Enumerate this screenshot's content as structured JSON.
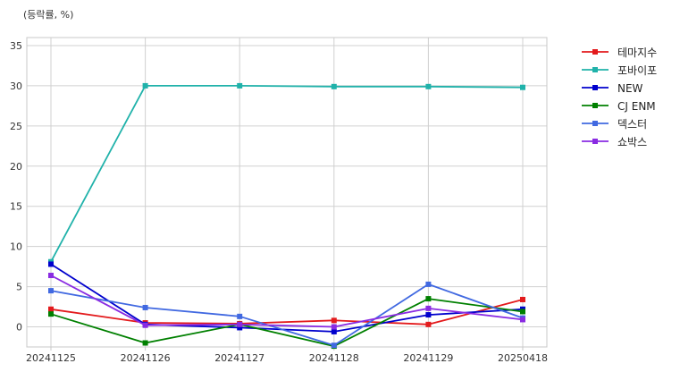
{
  "chart_data": {
    "type": "line",
    "unit_label": "(등락률, %)",
    "categories": [
      "20241125",
      "20241126",
      "20241127",
      "20241128",
      "20241129",
      "20250418"
    ],
    "ylim": [
      -2.5,
      36
    ],
    "yticks": [
      0,
      5,
      10,
      15,
      20,
      25,
      30,
      35
    ],
    "grid": true,
    "legend_position": "right-top-outside",
    "series": [
      {
        "name": "테마지수",
        "color": "#e31a1c",
        "values": [
          2.2,
          0.5,
          0.4,
          0.8,
          0.3,
          3.4
        ]
      },
      {
        "name": "포바이포",
        "color": "#20b2aa",
        "values": [
          8.1,
          30.0,
          30.0,
          29.9,
          29.9,
          29.8
        ]
      },
      {
        "name": "NEW",
        "color": "#0000cd",
        "values": [
          7.8,
          0.3,
          -0.1,
          -0.6,
          1.5,
          2.2
        ]
      },
      {
        "name": "CJ ENM",
        "color": "#008000",
        "values": [
          1.6,
          -2.0,
          0.3,
          -2.4,
          3.5,
          1.9
        ]
      },
      {
        "name": "덱스터",
        "color": "#4169e1",
        "values": [
          4.5,
          2.4,
          1.3,
          -2.3,
          5.3,
          1.1
        ]
      },
      {
        "name": "쇼박스",
        "color": "#8a2be2",
        "values": [
          6.4,
          0.2,
          0.3,
          0.0,
          2.3,
          0.9
        ]
      }
    ]
  }
}
